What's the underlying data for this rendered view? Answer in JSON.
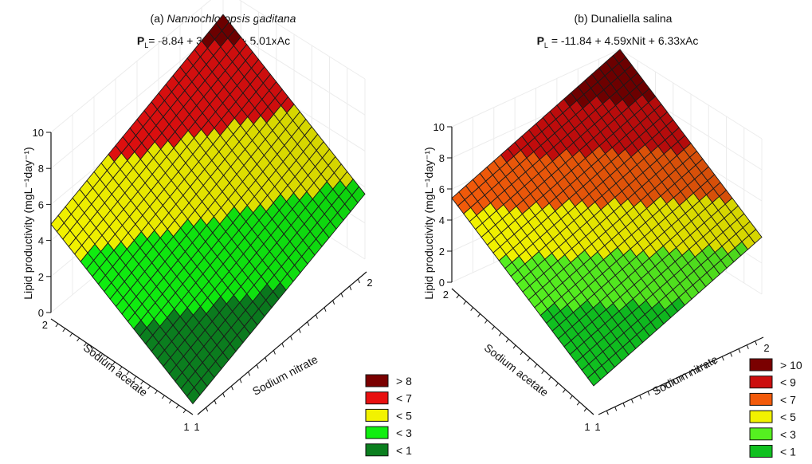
{
  "chart_data": [
    {
      "type": "surface",
      "title_prefix": "(a) ",
      "title_name": "Nannochloropsis gaditana",
      "equation_symbol": "P",
      "equation_subscript": "L",
      "equation_rhs": "= -8.84 + 3.72xNit + 5.01xAc",
      "zlabel": "Lipid productivity (mgL⁻¹day⁻¹)",
      "xlabel": "Sodium nitrate",
      "ylabel": "Sodium acetate",
      "zticks": [
        "0",
        "2",
        "4",
        "6",
        "8",
        "10"
      ],
      "x_tick_low": "1",
      "x_tick_high": "2",
      "y_tick_low": "1",
      "y_tick_high": "2",
      "zlim": [
        0,
        10
      ],
      "xlim": [
        1,
        2
      ],
      "ylim": [
        1,
        2
      ],
      "intercept": -8.84,
      "coef_nitrate": 3.72,
      "coef_acetate": 5.01,
      "legend": [
        {
          "label": "> 8",
          "color": "#7a0000"
        },
        {
          "label": "< 7",
          "color": "#e81010"
        },
        {
          "label": "< 5",
          "color": "#f2f200"
        },
        {
          "label": "< 3",
          "color": "#10ee10"
        },
        {
          "label": "< 1",
          "color": "#0b7f1f"
        }
      ],
      "legend_placement": "bottom-right"
    },
    {
      "type": "surface",
      "title_prefix": "(b) ",
      "title_name": "Dunaliella salina",
      "equation_symbol": "P",
      "equation_subscript": "L",
      "equation_rhs": " = -11.84 + 4.59xNit + 6.33xAc",
      "zlabel": "Lipid productivity (mgL⁻¹day⁻¹)",
      "xlabel": "Sodium nitrate",
      "ylabel": "Sodium acetate",
      "zticks": [
        "0",
        "2",
        "4",
        "6",
        "8",
        "10"
      ],
      "x_tick_low": "1",
      "x_tick_high": "2",
      "y_tick_low": "1",
      "y_tick_high": "2",
      "zlim": [
        0,
        10
      ],
      "xlim": [
        1,
        2
      ],
      "ylim": [
        1,
        2
      ],
      "intercept": -11.84,
      "coef_nitrate": 4.59,
      "coef_acetate": 6.33,
      "legend": [
        {
          "label": "> 10",
          "color": "#7a0000"
        },
        {
          "label": "< 9",
          "color": "#cc0d0d"
        },
        {
          "label": "< 7",
          "color": "#f25a0a"
        },
        {
          "label": "< 5",
          "color": "#f2f200"
        },
        {
          "label": "< 3",
          "color": "#55f020"
        },
        {
          "label": "< 1",
          "color": "#10c020"
        }
      ],
      "legend_placement": "bottom-right"
    }
  ]
}
